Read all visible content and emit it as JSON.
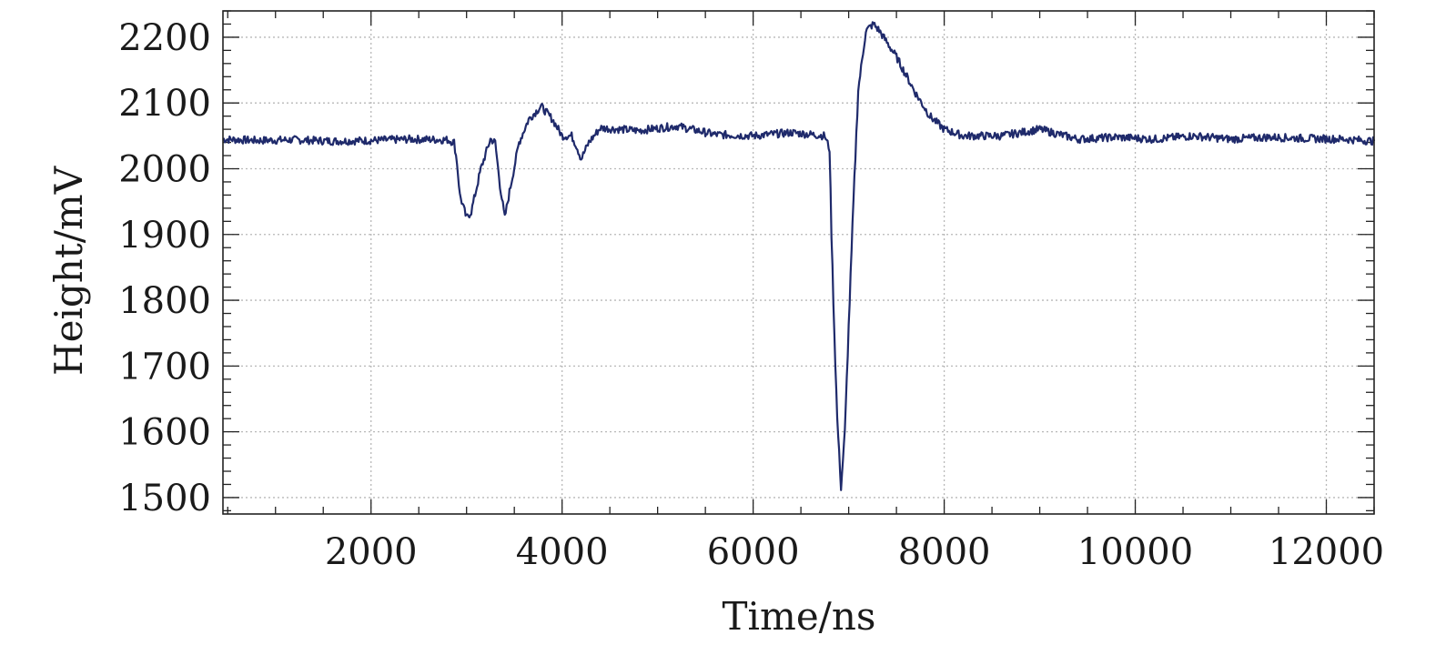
{
  "chart_data": {
    "type": "line",
    "xlabel": "Time/ns",
    "ylabel": "Height/mV",
    "xlim": [
      450,
      12500
    ],
    "ylim": [
      1475,
      2240
    ],
    "grid": true,
    "x_ticks": [
      2000,
      4000,
      6000,
      8000,
      10000,
      12000
    ],
    "y_ticks": [
      1500,
      1600,
      1700,
      1800,
      1900,
      2000,
      2100,
      2200
    ],
    "x_minor_step": 500,
    "y_minor_step": 20,
    "colors": {
      "line": "#1f2a6b",
      "grid": "#b8b8b8",
      "frame": "#222222"
    },
    "series": [
      {
        "points": [
          [
            450,
            2045
          ],
          [
            800,
            2043
          ],
          [
            1200,
            2044
          ],
          [
            1600,
            2042
          ],
          [
            2000,
            2043
          ],
          [
            2400,
            2045
          ],
          [
            2800,
            2044
          ],
          [
            2870,
            2040
          ],
          [
            2900,
            2010
          ],
          [
            2930,
            1960
          ],
          [
            3000,
            1925
          ],
          [
            3050,
            1935
          ],
          [
            3150,
            2000
          ],
          [
            3250,
            2045
          ],
          [
            3300,
            2040
          ],
          [
            3350,
            1975
          ],
          [
            3400,
            1925
          ],
          [
            3450,
            1965
          ],
          [
            3550,
            2040
          ],
          [
            3650,
            2075
          ],
          [
            3780,
            2095
          ],
          [
            3900,
            2075
          ],
          [
            4000,
            2050
          ],
          [
            4100,
            2050
          ],
          [
            4150,
            2035
          ],
          [
            4200,
            2015
          ],
          [
            4280,
            2040
          ],
          [
            4400,
            2062
          ],
          [
            4800,
            2058
          ],
          [
            5200,
            2065
          ],
          [
            5600,
            2052
          ],
          [
            6000,
            2050
          ],
          [
            6400,
            2055
          ],
          [
            6750,
            2050
          ],
          [
            6800,
            2030
          ],
          [
            6820,
            1900
          ],
          [
            6850,
            1750
          ],
          [
            6880,
            1620
          ],
          [
            6920,
            1515
          ],
          [
            6960,
            1600
          ],
          [
            7000,
            1760
          ],
          [
            7050,
            1950
          ],
          [
            7100,
            2120
          ],
          [
            7180,
            2210
          ],
          [
            7260,
            2220
          ],
          [
            7320,
            2210
          ],
          [
            7500,
            2170
          ],
          [
            7700,
            2115
          ],
          [
            7850,
            2080
          ],
          [
            8000,
            2060
          ],
          [
            8200,
            2050
          ],
          [
            8600,
            2050
          ],
          [
            9000,
            2060
          ],
          [
            9400,
            2045
          ],
          [
            9800,
            2048
          ],
          [
            10200,
            2045
          ],
          [
            10600,
            2050
          ],
          [
            11000,
            2045
          ],
          [
            11400,
            2048
          ],
          [
            11800,
            2046
          ],
          [
            12200,
            2045
          ],
          [
            12500,
            2042
          ]
        ]
      }
    ]
  }
}
